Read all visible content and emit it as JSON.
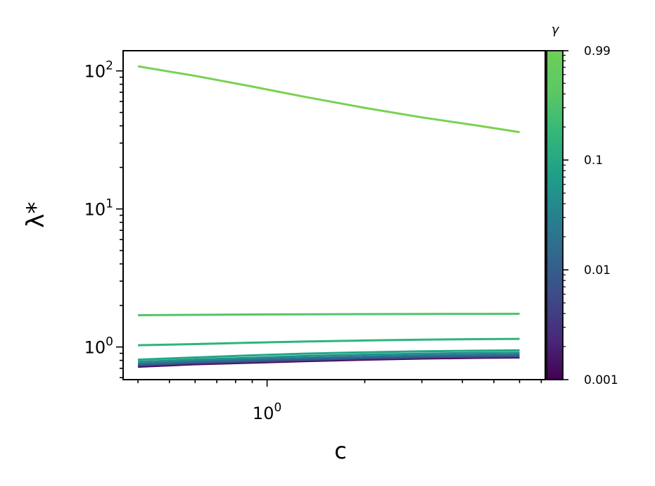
{
  "chart_data": {
    "type": "line",
    "xlabel": "c",
    "ylabel": "λ*",
    "xscale": "log",
    "yscale": "log",
    "xlim": [
      0.36,
      7.2
    ],
    "ylim": [
      0.58,
      140
    ],
    "x_ticks": [
      {
        "value": 1,
        "base": "10",
        "exp": "0"
      }
    ],
    "y_ticks": [
      {
        "value": 1,
        "base": "10",
        "exp": "0"
      },
      {
        "value": 10,
        "base": "10",
        "exp": "1"
      },
      {
        "value": 100,
        "base": "10",
        "exp": "2"
      }
    ],
    "grid": false,
    "colorbar": {
      "title": "γ",
      "scale": "log",
      "range": [
        0.001,
        0.99
      ],
      "colormap": "viridis",
      "tick_labels": [
        "0.99",
        "0.1",
        "0.01",
        "0.001"
      ],
      "tick_values": [
        0.99,
        0.1,
        0.01,
        0.001
      ]
    },
    "x": [
      0.4,
      0.6,
      0.9,
      1.3,
      2.0,
      3.0,
      4.5,
      6.0
    ],
    "series": [
      {
        "gamma": 0.001,
        "color": "#440154",
        "values": [
          0.72,
          0.75,
          0.77,
          0.79,
          0.81,
          0.825,
          0.835,
          0.84
        ]
      },
      {
        "gamma": 0.002,
        "color": "#472c7a",
        "values": [
          0.73,
          0.76,
          0.78,
          0.8,
          0.82,
          0.835,
          0.845,
          0.85
        ]
      },
      {
        "gamma": 0.005,
        "color": "#3b518b",
        "values": [
          0.74,
          0.77,
          0.79,
          0.81,
          0.83,
          0.845,
          0.855,
          0.86
        ]
      },
      {
        "gamma": 0.01,
        "color": "#2c718e",
        "values": [
          0.755,
          0.785,
          0.81,
          0.83,
          0.85,
          0.865,
          0.875,
          0.88
        ]
      },
      {
        "gamma": 0.02,
        "color": "#21908d",
        "values": [
          0.78,
          0.81,
          0.835,
          0.86,
          0.88,
          0.895,
          0.905,
          0.91
        ]
      },
      {
        "gamma": 0.05,
        "color": "#22a785",
        "values": [
          0.81,
          0.84,
          0.87,
          0.895,
          0.915,
          0.93,
          0.94,
          0.945
        ]
      },
      {
        "gamma": 0.1,
        "color": "#2fb47c",
        "values": [
          1.03,
          1.05,
          1.075,
          1.095,
          1.115,
          1.13,
          1.14,
          1.145
        ]
      },
      {
        "gamma": 0.5,
        "color": "#52c569",
        "values": [
          1.7,
          1.71,
          1.72,
          1.725,
          1.73,
          1.735,
          1.738,
          1.74
        ]
      },
      {
        "gamma": 0.99,
        "color": "#7ad151",
        "values": [
          108,
          92,
          77,
          65,
          54,
          46,
          40,
          36
        ]
      }
    ]
  }
}
